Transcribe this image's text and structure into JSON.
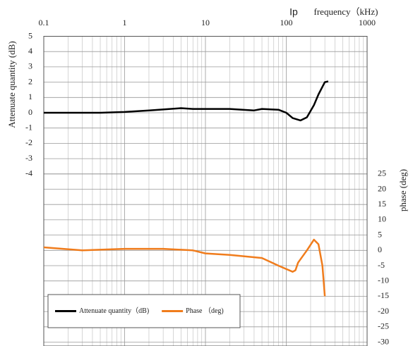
{
  "chart_data": {
    "type": "line",
    "title": "Ip",
    "x_label": "frequency（kHz)",
    "y_label": "Attenuate quantity (dB)",
    "y2_label": "phase (deg)",
    "x_scale": "log",
    "xlim": [
      0.1,
      1000
    ],
    "xticks": [
      0.1,
      1,
      10,
      100,
      1000
    ],
    "ylim": [
      -15,
      5
    ],
    "yticks": [
      -4,
      -3,
      -2,
      -1,
      0,
      1,
      2,
      3,
      4,
      5
    ],
    "y2lim": [
      -30,
      70
    ],
    "y2ticks": [
      -30,
      -25,
      -20,
      -15,
      -10,
      -5,
      0,
      5,
      10,
      15,
      20,
      25
    ],
    "grid": true,
    "legend": "lower left",
    "series": [
      {
        "name": "Attenuate quantity（dB)",
        "color": "#000000",
        "x": [
          0.1,
          0.5,
          1,
          2,
          5,
          7,
          10,
          20,
          40,
          50,
          80,
          100,
          120,
          150,
          180,
          220,
          250,
          300,
          330
        ],
        "values": [
          0,
          0,
          0.05,
          0.15,
          0.3,
          0.25,
          0.25,
          0.25,
          0.15,
          0.25,
          0.2,
          0,
          -0.35,
          -0.5,
          -0.3,
          0.5,
          1.2,
          2,
          2.05
        ]
      },
      {
        "name": "Phase （deg)",
        "color": "#f07c1c",
        "axis": "y2",
        "x": [
          0.1,
          0.3,
          1,
          3,
          7,
          10,
          20,
          50,
          80,
          120,
          130,
          140,
          180,
          220,
          250,
          280,
          300
        ],
        "values": [
          1,
          0,
          0.5,
          0.5,
          0,
          -1,
          -1.5,
          -2.5,
          -5,
          -7,
          -6.5,
          -4,
          0,
          3.5,
          2,
          -5,
          -15
        ]
      }
    ]
  }
}
